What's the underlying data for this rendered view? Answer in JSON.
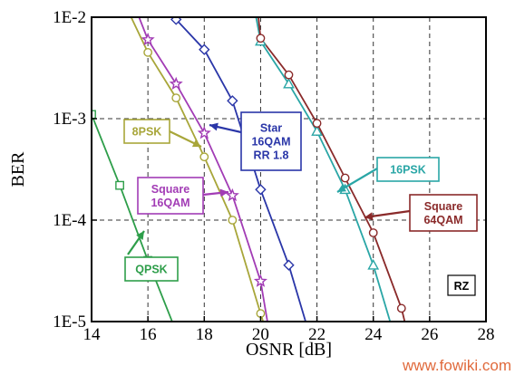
{
  "chart_data": {
    "type": "line",
    "xlabel": "OSNR [dB]",
    "ylabel": "BER",
    "xlim": [
      14,
      28
    ],
    "ylim": [
      1e-05,
      0.01
    ],
    "y_scale": "log",
    "grid": true,
    "x_ticks": [
      "14",
      "16",
      "18",
      "20",
      "22",
      "24",
      "26",
      "28"
    ],
    "y_ticks": [
      {
        "value": 0.01,
        "label": "1E-2"
      },
      {
        "value": 0.001,
        "label": "1E-3"
      },
      {
        "value": 0.0001,
        "label": "1E-4"
      },
      {
        "value": 1e-05,
        "label": "1E-5"
      }
    ],
    "annotations": [
      {
        "text": "RZ"
      }
    ],
    "series": [
      {
        "name": "QPSK",
        "color": "#2e9e4a",
        "marker": "square",
        "label_lines": [
          "QPSK"
        ],
        "points": [
          [
            14.0,
            0.0011
          ],
          [
            15.0,
            0.00022
          ],
          [
            16.0,
            4e-05
          ],
          [
            17.0,
            8e-06
          ]
        ]
      },
      {
        "name": "8PSK",
        "color": "#a8a63a",
        "marker": "circle",
        "label_lines": [
          "8PSK"
        ],
        "points": [
          [
            15.3,
            0.0115
          ],
          [
            16.0,
            0.0045
          ],
          [
            17.0,
            0.0016
          ],
          [
            18.0,
            0.00042
          ],
          [
            19.0,
            0.0001
          ],
          [
            20.0,
            1.2e-05
          ],
          [
            20.2,
            8e-06
          ]
        ]
      },
      {
        "name": "Square 16QAM",
        "color": "#a23cb5",
        "marker": "star",
        "label_lines": [
          "Square",
          "16QAM"
        ],
        "points": [
          [
            15.6,
            0.0115
          ],
          [
            16.0,
            0.006
          ],
          [
            17.0,
            0.0022
          ],
          [
            18.0,
            0.00072
          ],
          [
            19.0,
            0.000175
          ],
          [
            20.0,
            2.5e-05
          ],
          [
            20.3,
            8e-06
          ]
        ]
      },
      {
        "name": "Star 16QAM RR 1.8",
        "color": "#2a36a8",
        "marker": "diamond",
        "label_lines": [
          "Star",
          "16QAM",
          "RR 1.8"
        ],
        "points": [
          [
            16.8,
            0.0115
          ],
          [
            17.0,
            0.0095
          ],
          [
            18.0,
            0.0048
          ],
          [
            19.0,
            0.0015
          ],
          [
            20.0,
            0.0002
          ],
          [
            21.0,
            3.6e-05
          ],
          [
            21.7,
            8e-06
          ]
        ]
      },
      {
        "name": "16PSK",
        "color": "#2aa6a6",
        "marker": "triangle",
        "label_lines": [
          "16PSK"
        ],
        "points": [
          [
            19.8,
            0.0115
          ],
          [
            20.0,
            0.0058
          ],
          [
            21.0,
            0.0022
          ],
          [
            22.0,
            0.00075
          ],
          [
            23.0,
            0.0002
          ],
          [
            24.0,
            3.6e-05
          ],
          [
            24.7,
            8e-06
          ]
        ]
      },
      {
        "name": "Square 64QAM",
        "color": "#8a2a2a",
        "marker": "circle",
        "label_lines": [
          "Square",
          "64QAM"
        ],
        "points": [
          [
            19.9,
            0.0115
          ],
          [
            20.0,
            0.0062
          ],
          [
            21.0,
            0.0027
          ],
          [
            22.0,
            0.0009
          ],
          [
            23.0,
            0.00026
          ],
          [
            24.0,
            7.5e-05
          ],
          [
            25.0,
            1.35e-05
          ],
          [
            25.2,
            8e-06
          ]
        ]
      }
    ]
  },
  "watermark": "www.fowiki.com"
}
